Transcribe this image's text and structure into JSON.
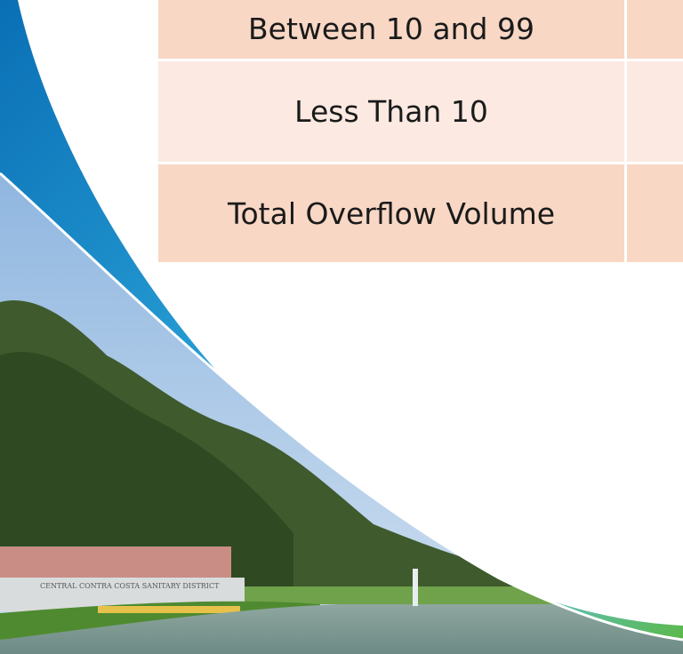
{
  "table": {
    "rows": [
      [
        "Between 10 and 99"
      ],
      [
        "Less Than 10"
      ],
      [
        "Total Overflow Volume"
      ]
    ]
  },
  "photo": {
    "sign_text": "CENTRAL  CONTRA  COSTA  SANITARY  DISTRICT"
  }
}
